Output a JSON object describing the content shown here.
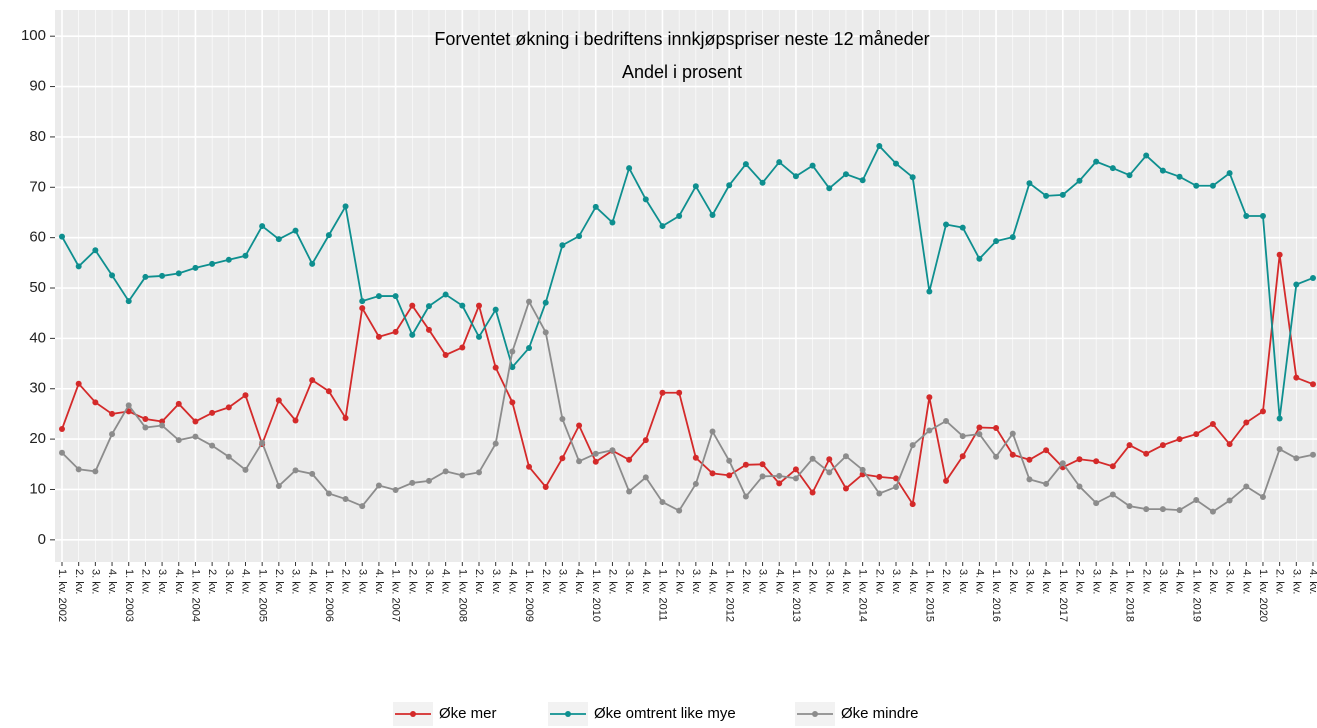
{
  "chart_data": {
    "type": "line",
    "title": "Forventet økning i bedriftens innkjøpspriser neste 12 måneder",
    "subtitle": "Andel i prosent",
    "categories": [
      "1. kv. 2002",
      "2. kv.",
      "3. kv.",
      "4. kv.",
      "1. kv. 2003",
      "2. kv.",
      "3. kv.",
      "4. kv.",
      "1. kv. 2004",
      "2. kv.",
      "3. kv.",
      "4. kv.",
      "1. kv. 2005",
      "2. kv.",
      "3. kv.",
      "4. kv.",
      "1. kv. 2006",
      "2. kv.",
      "3. kv.",
      "4. kv.",
      "1. kv. 2007",
      "2. kv.",
      "3. kv.",
      "4. kv.",
      "1. kv. 2008",
      "2. kv.",
      "3. kv.",
      "4. kv.",
      "1. kv. 2009",
      "2. kv.",
      "3. kv.",
      "4. kv.",
      "1. kv. 2010",
      "2. kv.",
      "3. kv.",
      "4. kv.",
      "1. kv. 2011",
      "2. kv.",
      "3. kv.",
      "4. kv.",
      "1. kv. 2012",
      "2. kv.",
      "3. kv.",
      "4. kv.",
      "1. kv. 2013",
      "2. kv.",
      "3. kv.",
      "4. kv.",
      "1. kv. 2014",
      "2. kv.",
      "3. kv.",
      "4. kv.",
      "1. kv. 2015",
      "2. kv.",
      "3. kv.",
      "4. kv.",
      "1. kv. 2016",
      "2. kv.",
      "3. kv.",
      "4. kv.",
      "1. kv. 2017",
      "2. kv.",
      "3. kv.",
      "4. kv.",
      "1. kv. 2018",
      "2. kv.",
      "3. kv.",
      "4. kv.",
      "1. kv. 2019",
      "2. kv.",
      "3. kv.",
      "4. kv.",
      "1. kv. 2020",
      "2. kv.",
      "3. kv.",
      "4. kv."
    ],
    "series": [
      {
        "name": "Øke mer",
        "color": "#d42a2a",
        "values": [
          22,
          31,
          27.3,
          25,
          25.5,
          24,
          23.5,
          27,
          23.5,
          25.2,
          26.3,
          28.7,
          19,
          27.7,
          23.7,
          31.7,
          29.5,
          24.2,
          46,
          40.3,
          41.3,
          46.5,
          41.7,
          36.7,
          38.2,
          46.5,
          34.2,
          27.3,
          14.5,
          10.5,
          16.2,
          22.7,
          15.5,
          17.7,
          15.9,
          19.8,
          29.2,
          29.2,
          16.3,
          13.2,
          12.8,
          14.9,
          15,
          11.2,
          14,
          9.4,
          16,
          10.2,
          13,
          12.5,
          12.2,
          7.1,
          28.3,
          11.7,
          16.6,
          22.3,
          22.2,
          16.9,
          15.9,
          17.8,
          14.4,
          16,
          15.6,
          14.6,
          18.8,
          17.1,
          18.8,
          20,
          21,
          23,
          19,
          23.3,
          25.5,
          56.6,
          32.2,
          30.9
        ]
      },
      {
        "name": "Øke omtrent like mye",
        "color": "#0e8f8f",
        "values": [
          60.2,
          54.3,
          57.5,
          52.5,
          47.4,
          52.2,
          52.4,
          52.9,
          54,
          54.8,
          55.6,
          56.4,
          62.3,
          59.7,
          61.4,
          54.8,
          60.5,
          66.2,
          47.4,
          48.4,
          48.4,
          40.7,
          46.4,
          48.7,
          46.5,
          40.3,
          45.7,
          34.3,
          38.1,
          47.1,
          58.5,
          60.3,
          66.1,
          63,
          73.8,
          67.6,
          62.3,
          64.3,
          70.2,
          64.5,
          70.4,
          74.6,
          70.9,
          75,
          72.2,
          74.3,
          69.8,
          72.6,
          71.4,
          78.2,
          74.7,
          72,
          49.3,
          62.6,
          62,
          55.8,
          59.3,
          60.1,
          70.8,
          68.3,
          68.5,
          71.3,
          75.1,
          73.8,
          72.4,
          76.3,
          73.3,
          72.1,
          70.3,
          70.3,
          72.8,
          64.3,
          64.3,
          24.1,
          50.7,
          52
        ]
      },
      {
        "name": "Øke mindre",
        "color": "#8c8c8c",
        "values": [
          17.3,
          14,
          13.6,
          21,
          26.7,
          22.3,
          22.7,
          19.8,
          20.5,
          18.7,
          16.5,
          13.9,
          19.3,
          10.7,
          13.8,
          13.1,
          9.2,
          8.1,
          6.7,
          10.8,
          9.9,
          11.3,
          11.7,
          13.6,
          12.8,
          13.4,
          19.1,
          37.4,
          47.3,
          41.2,
          24,
          15.6,
          17.1,
          17.8,
          9.6,
          12.4,
          7.5,
          5.8,
          11.1,
          21.5,
          15.7,
          8.6,
          12.6,
          12.7,
          12.2,
          16.1,
          13.4,
          16.6,
          13.9,
          9.2,
          10.5,
          18.8,
          21.7,
          23.6,
          20.6,
          21,
          16.5,
          21.1,
          12,
          11.1,
          15.2,
          10.6,
          7.3,
          9,
          6.7,
          6.1,
          6.1,
          5.9,
          7.9,
          5.6,
          7.8,
          10.6,
          8.5,
          18,
          16.2,
          16.9
        ]
      }
    ],
    "ylim": [
      -4.4,
      105.2
    ],
    "yticks": [
      0,
      10,
      20,
      30,
      40,
      50,
      60,
      70,
      80,
      90,
      100
    ],
    "grid": true,
    "legend": "bottom"
  }
}
